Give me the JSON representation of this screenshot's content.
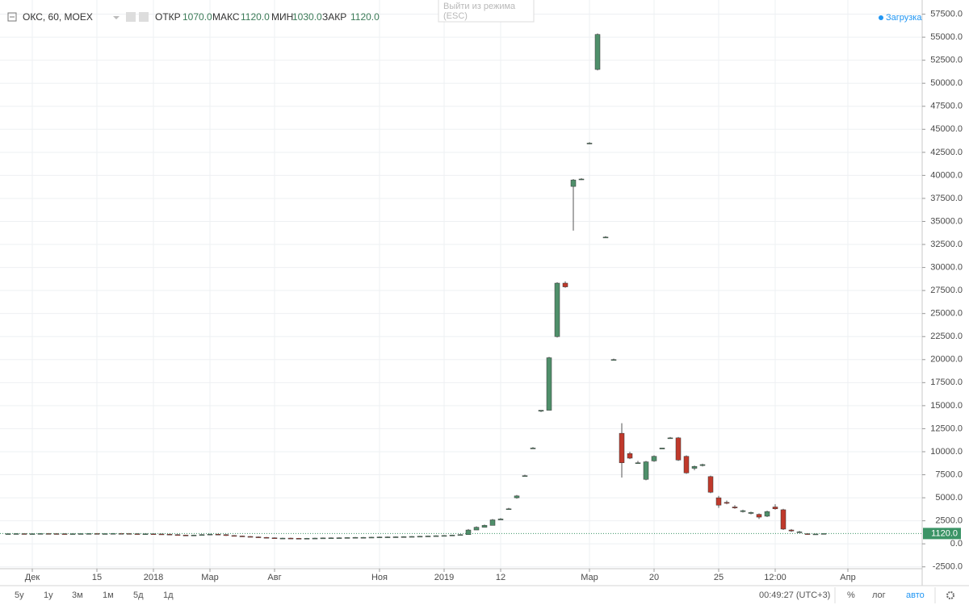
{
  "ui": {
    "symbol": "ОКС, 60, MOEX",
    "ohlc_legend": [
      {
        "name": "ОТКР",
        "value": "1070.0"
      },
      {
        "name": "МАКС",
        "value": "1120.0"
      },
      {
        "name": "МИН",
        "value": "1030.0"
      },
      {
        "name": "ЗАКР",
        "value": "1120.0"
      }
    ],
    "tooltip": [
      "Выйти из режима",
      "(ESC)"
    ],
    "status": "Загрузка",
    "ranges": [
      "5у",
      "1у",
      "3м",
      "1м",
      "5д",
      "1д"
    ],
    "clock": "00:49:27 (UTC+3)",
    "scale_buttons": [
      "%",
      "лог",
      "авто"
    ]
  },
  "chart_data": {
    "type": "candlestick",
    "categories": [
      null,
      null,
      null,
      "Дек",
      null,
      null,
      null,
      null,
      null,
      null,
      null,
      "15",
      null,
      null,
      null,
      null,
      null,
      null,
      "2018",
      null,
      null,
      null,
      null,
      null,
      null,
      "Мар",
      null,
      null,
      null,
      null,
      null,
      null,
      null,
      "Авг",
      null,
      null,
      null,
      null,
      null,
      null,
      null,
      null,
      null,
      null,
      null,
      null,
      "Ноя",
      null,
      null,
      null,
      null,
      null,
      null,
      null,
      "2019",
      null,
      null,
      null,
      null,
      null,
      null,
      "12",
      null,
      null,
      null,
      null,
      null,
      null,
      null,
      null,
      null,
      null,
      "Мар",
      null,
      null,
      null,
      null,
      null,
      null,
      null,
      "20",
      null,
      null,
      null,
      null,
      null,
      null,
      null,
      "25",
      null,
      null,
      null,
      null,
      null,
      null,
      "12:00",
      null,
      null,
      null,
      null,
      null,
      null,
      null,
      null,
      "Апр",
      null,
      null,
      null,
      null,
      null,
      null,
      null,
      null,
      null
    ],
    "open": [
      1080,
      1100,
      1110,
      1090,
      1100,
      1120,
      1110,
      1100,
      1090,
      1100,
      1110,
      1120,
      1100,
      1110,
      1130,
      1120,
      1100,
      1080,
      1090,
      1070,
      1050,
      1000,
      950,
      900,
      950,
      1000,
      1050,
      1000,
      900,
      850,
      800,
      750,
      700,
      650,
      600,
      620,
      600,
      580,
      600,
      620,
      640,
      650,
      660,
      680,
      700,
      700,
      720,
      740,
      750,
      760,
      780,
      800,
      820,
      850,
      880,
      900,
      950,
      1000,
      1500,
      1800,
      2000,
      2600,
      3800,
      5000,
      7400,
      10400,
      14400,
      14500,
      22500,
      28300,
      38800,
      39600,
      43500,
      51500,
      33300,
      20000,
      12000,
      9800,
      8800,
      7000,
      9000,
      10300,
      11500,
      11500,
      9500,
      8200,
      8500,
      7300,
      5000,
      4500,
      4000,
      3500,
      3300,
      3200,
      3000,
      4000,
      3700,
      1500,
      1300,
      1100,
      1050,
      1070,
      null,
      null,
      null,
      null,
      null,
      null,
      null,
      null,
      null,
      null,
      null,
      null
    ],
    "high": [
      1140,
      1150,
      1150,
      1140,
      1160,
      1160,
      1150,
      1140,
      1140,
      1150,
      1160,
      1160,
      1150,
      1170,
      1170,
      1160,
      1140,
      1130,
      1130,
      1110,
      1090,
      1040,
      990,
      990,
      1040,
      1090,
      1090,
      1040,
      940,
      890,
      840,
      790,
      740,
      690,
      660,
      660,
      640,
      640,
      660,
      680,
      690,
      700,
      720,
      740,
      740,
      760,
      780,
      790,
      800,
      820,
      840,
      860,
      890,
      920,
      940,
      990,
      1040,
      1600,
      1900,
      2100,
      2700,
      2800,
      3900,
      5300,
      7500,
      10500,
      14500,
      20300,
      28400,
      28500,
      39600,
      39700,
      43600,
      55400,
      33400,
      20100,
      13100,
      10000,
      9000,
      9000,
      9600,
      10400,
      11600,
      11600,
      9600,
      8500,
      8700,
      7400,
      5200,
      4700,
      4200,
      3700,
      3500,
      3300,
      3600,
      4300,
      3800,
      1600,
      1400,
      1150,
      1100,
      1120,
      null,
      null,
      null,
      null,
      null,
      null,
      null,
      null,
      null,
      null,
      null,
      null
    ],
    "low": [
      1040,
      1060,
      1050,
      1050,
      1060,
      1070,
      1060,
      1050,
      1050,
      1060,
      1070,
      1060,
      1060,
      1070,
      1080,
      1060,
      1040,
      1040,
      1030,
      1010,
      960,
      910,
      860,
      860,
      910,
      960,
      960,
      860,
      810,
      760,
      710,
      660,
      610,
      560,
      560,
      560,
      540,
      540,
      560,
      580,
      600,
      610,
      620,
      640,
      660,
      660,
      680,
      700,
      710,
      720,
      740,
      760,
      780,
      810,
      840,
      860,
      910,
      1000,
      1500,
      1800,
      2000,
      2600,
      3700,
      4900,
      7300,
      10300,
      14300,
      14500,
      22400,
      27800,
      34000,
      39500,
      43400,
      51400,
      33200,
      19900,
      7200,
      9200,
      8700,
      6900,
      8900,
      10300,
      11400,
      9000,
      7600,
      8000,
      8400,
      5500,
      3900,
      4300,
      3800,
      3400,
      3200,
      2700,
      2900,
      3700,
      1500,
      1300,
      1200,
      1000,
      1000,
      1030,
      null,
      null,
      null,
      null,
      null,
      null,
      null,
      null,
      null,
      null,
      null,
      null
    ],
    "close": [
      1100,
      1110,
      1090,
      1100,
      1120,
      1110,
      1100,
      1090,
      1100,
      1110,
      1120,
      1100,
      1110,
      1130,
      1120,
      1100,
      1080,
      1090,
      1070,
      1050,
      1000,
      950,
      900,
      950,
      1000,
      1050,
      1000,
      900,
      850,
      800,
      750,
      700,
      650,
      600,
      620,
      600,
      580,
      600,
      620,
      640,
      650,
      660,
      680,
      700,
      700,
      720,
      740,
      750,
      760,
      780,
      800,
      820,
      850,
      880,
      900,
      950,
      1000,
      1500,
      1800,
      2000,
      2600,
      2700,
      3800,
      5200,
      7400,
      10400,
      14500,
      20200,
      28300,
      27900,
      39500,
      39600,
      43500,
      55300,
      33300,
      20000,
      8800,
      9300,
      8800,
      8900,
      9500,
      10400,
      11500,
      9100,
      7700,
      8400,
      8600,
      5600,
      4200,
      4400,
      3900,
      3600,
      3400,
      2900,
      3500,
      3800,
      1600,
      1400,
      1300,
      1050,
      1070,
      1120,
      null,
      null,
      null,
      null,
      null,
      null,
      null,
      null,
      null,
      null,
      null,
      null
    ],
    "up_color": "#4f8f6a",
    "down_color": "#c0392b",
    "last_value": {
      "value": 1120,
      "label": "1120.0"
    },
    "last_color": "#3b9466",
    "ylim": [
      -2700,
      58600
    ],
    "yticks": [
      {
        "value": -2500,
        "label": "-2500.0"
      },
      {
        "value": 0,
        "label": "0.0"
      },
      {
        "value": 2500,
        "label": "2500.0"
      },
      {
        "value": 5000,
        "label": "5000.0"
      },
      {
        "value": 7500,
        "label": "7500.0"
      },
      {
        "value": 10000,
        "label": "10000.0"
      },
      {
        "value": 12500,
        "label": "12500.0"
      },
      {
        "value": 15000,
        "label": "15000.0"
      },
      {
        "value": 17500,
        "label": "17500.0"
      },
      {
        "value": 20000,
        "label": "20000.0"
      },
      {
        "value": 22500,
        "label": "22500.0"
      },
      {
        "value": 25000,
        "label": "25000.0"
      },
      {
        "value": 27500,
        "label": "27500.0"
      },
      {
        "value": 30000,
        "label": "30000.0"
      },
      {
        "value": 32500,
        "label": "32500.0"
      },
      {
        "value": 35000,
        "label": "35000.0"
      },
      {
        "value": 37500,
        "label": "37500.0"
      },
      {
        "value": 40000,
        "label": "40000.0"
      },
      {
        "value": 42500,
        "label": "42500.0"
      },
      {
        "value": 45000,
        "label": "45000.0"
      },
      {
        "value": 47500,
        "label": "47500.0"
      },
      {
        "value": 50000,
        "label": "50000.0"
      },
      {
        "value": 52500,
        "label": "52500.0"
      },
      {
        "value": 55000,
        "label": "55000.0"
      },
      {
        "value": 57500,
        "label": "57500.0"
      }
    ],
    "grid": true
  }
}
